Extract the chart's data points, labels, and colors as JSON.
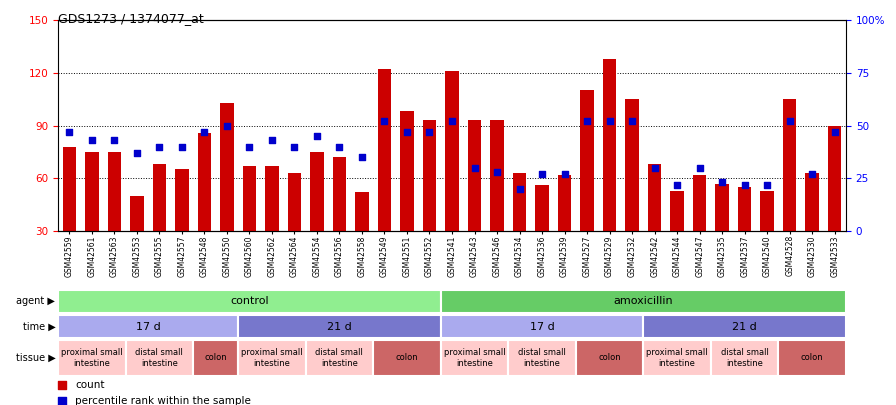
{
  "title": "GDS1273 / 1374077_at",
  "samples": [
    "GSM42559",
    "GSM42561",
    "GSM42563",
    "GSM42553",
    "GSM42555",
    "GSM42557",
    "GSM42548",
    "GSM42550",
    "GSM42560",
    "GSM42562",
    "GSM42564",
    "GSM42554",
    "GSM42556",
    "GSM42558",
    "GSM42549",
    "GSM42551",
    "GSM42552",
    "GSM42541",
    "GSM42543",
    "GSM42546",
    "GSM42534",
    "GSM42536",
    "GSM42539",
    "GSM42527",
    "GSM42529",
    "GSM42532",
    "GSM42542",
    "GSM42544",
    "GSM42547",
    "GSM42535",
    "GSM42537",
    "GSM42540",
    "GSM42528",
    "GSM42530",
    "GSM42533"
  ],
  "counts": [
    78,
    75,
    75,
    50,
    68,
    65,
    86,
    103,
    67,
    67,
    63,
    75,
    72,
    52,
    122,
    98,
    93,
    121,
    93,
    93,
    63,
    56,
    62,
    110,
    128,
    105,
    68,
    53,
    62,
    57,
    55,
    53,
    105,
    63,
    90
  ],
  "percentiles": [
    47,
    43,
    43,
    37,
    40,
    40,
    47,
    50,
    40,
    43,
    40,
    45,
    40,
    35,
    52,
    47,
    47,
    52,
    30,
    28,
    20,
    27,
    27,
    52,
    52,
    52,
    30,
    22,
    30,
    23,
    22,
    22,
    52,
    27,
    47
  ],
  "bar_color": "#CC0000",
  "dot_color": "#0000CC",
  "ylim_left": [
    30,
    150
  ],
  "ylim_right": [
    0,
    100
  ],
  "yticks_left": [
    30,
    60,
    90,
    120,
    150
  ],
  "yticks_right": [
    0,
    25,
    50,
    75,
    100
  ],
  "ytick_labels_right": [
    "0",
    "25",
    "50",
    "75",
    "100%"
  ],
  "grid_lines": [
    60,
    90,
    120
  ],
  "agent_groups": [
    {
      "label": "control",
      "start": 0,
      "end": 17,
      "color": "#90EE90"
    },
    {
      "label": "amoxicillin",
      "start": 17,
      "end": 35,
      "color": "#66CC66"
    }
  ],
  "time_groups": [
    {
      "label": "17 d",
      "start": 0,
      "end": 8,
      "color": "#AAAAEE"
    },
    {
      "label": "21 d",
      "start": 8,
      "end": 17,
      "color": "#7777CC"
    },
    {
      "label": "17 d",
      "start": 17,
      "end": 26,
      "color": "#AAAAEE"
    },
    {
      "label": "21 d",
      "start": 26,
      "end": 35,
      "color": "#7777CC"
    }
  ],
  "tissue_groups": [
    {
      "label": "proximal small\nintestine",
      "start": 0,
      "end": 3,
      "color": "#FFCCCC"
    },
    {
      "label": "distal small\nintestine",
      "start": 3,
      "end": 6,
      "color": "#FFCCCC"
    },
    {
      "label": "colon",
      "start": 6,
      "end": 8,
      "color": "#CC6666"
    },
    {
      "label": "proximal small\nintestine",
      "start": 8,
      "end": 11,
      "color": "#FFCCCC"
    },
    {
      "label": "distal small\nintestine",
      "start": 11,
      "end": 14,
      "color": "#FFCCCC"
    },
    {
      "label": "colon",
      "start": 14,
      "end": 17,
      "color": "#CC6666"
    },
    {
      "label": "proximal small\nintestine",
      "start": 17,
      "end": 20,
      "color": "#FFCCCC"
    },
    {
      "label": "distal small\nintestine",
      "start": 20,
      "end": 23,
      "color": "#FFCCCC"
    },
    {
      "label": "colon",
      "start": 23,
      "end": 26,
      "color": "#CC6666"
    },
    {
      "label": "proximal small\nintestine",
      "start": 26,
      "end": 29,
      "color": "#FFCCCC"
    },
    {
      "label": "distal small\nintestine",
      "start": 29,
      "end": 32,
      "color": "#FFCCCC"
    },
    {
      "label": "colon",
      "start": 32,
      "end": 35,
      "color": "#CC6666"
    }
  ],
  "legend_count_label": "count",
  "legend_pct_label": "percentile rank within the sample"
}
